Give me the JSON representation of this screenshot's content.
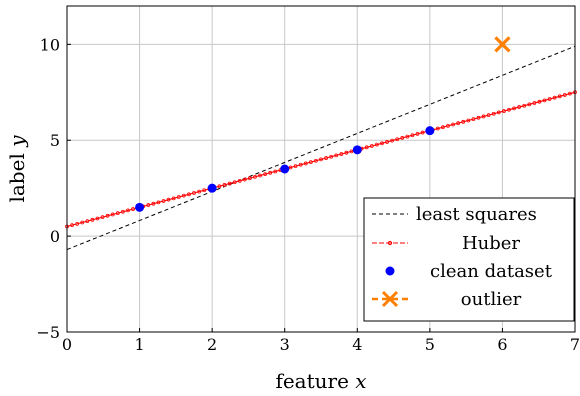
{
  "chart_data": {
    "type": "line",
    "xlabel": "feature",
    "xlabel_var": "x",
    "ylabel": "label",
    "ylabel_var": "y",
    "xlim": [
      0,
      7
    ],
    "ylim": [
      -5,
      12
    ],
    "xticks": [
      0,
      1,
      2,
      3,
      4,
      5,
      6,
      7
    ],
    "yticks": [
      -5,
      0,
      5,
      10
    ],
    "ytick_labels": [
      "−5",
      "0",
      "5",
      "10"
    ],
    "grid": true,
    "legend_position": "bottom-right",
    "series": [
      {
        "name": "least squares",
        "kind": "line",
        "style": "dashed",
        "color": "#000000",
        "x": [
          0,
          7
        ],
        "y": [
          -0.7,
          9.9
        ]
      },
      {
        "name": "Huber",
        "kind": "line",
        "style": "solid-with-markers",
        "color": "#ff0000",
        "x": [
          0,
          7
        ],
        "y": [
          0.5,
          7.5
        ]
      },
      {
        "name": "clean dataset",
        "kind": "scatter",
        "marker": "circle",
        "color": "#0000ff",
        "x": [
          1,
          2,
          3,
          4,
          5
        ],
        "y": [
          1.5,
          2.5,
          3.5,
          4.5,
          5.5
        ]
      },
      {
        "name": "outlier",
        "kind": "scatter",
        "marker": "x",
        "color": "#ff8000",
        "x": [
          6
        ],
        "y": [
          10
        ]
      }
    ]
  }
}
